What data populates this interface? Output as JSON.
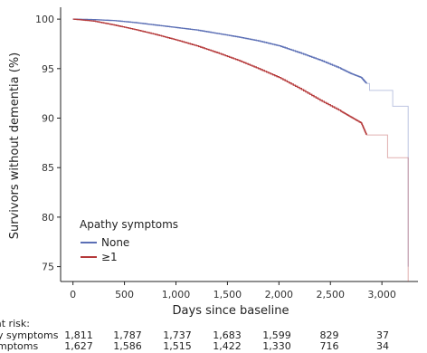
{
  "chart_data": {
    "type": "line",
    "title": "",
    "xlabel": "Days since baseline",
    "ylabel": "Survivors without dementia (%)",
    "xlim": [
      -120,
      3350
    ],
    "ylim": [
      73.5,
      101.2
    ],
    "xticks": [
      0,
      500,
      1000,
      1500,
      2000,
      2500,
      3000
    ],
    "xtick_labels": [
      "0",
      "500",
      "1,000",
      "1,500",
      "2,000",
      "2,500",
      "3,000"
    ],
    "yticks": [
      75,
      80,
      85,
      90,
      95,
      100
    ],
    "ytick_labels": [
      "75",
      "80",
      "85",
      "90",
      "95",
      "100"
    ],
    "grid": false,
    "step": true,
    "legend": {
      "title": "Apathy symptoms",
      "position": "bottom-left"
    },
    "series": [
      {
        "name": "None",
        "color": "#5b6fb5",
        "faded_after_x": 2850,
        "points": [
          [
            0,
            100
          ],
          [
            200,
            99.95
          ],
          [
            400,
            99.85
          ],
          [
            600,
            99.65
          ],
          [
            800,
            99.4
          ],
          [
            1000,
            99.15
          ],
          [
            1200,
            98.9
          ],
          [
            1400,
            98.55
          ],
          [
            1600,
            98.2
          ],
          [
            1800,
            97.8
          ],
          [
            2000,
            97.3
          ],
          [
            2200,
            96.6
          ],
          [
            2400,
            95.85
          ],
          [
            2600,
            95.0
          ],
          [
            2700,
            94.5
          ],
          [
            2800,
            94.1
          ],
          [
            2850,
            93.5
          ],
          [
            2880,
            92.8
          ],
          [
            3100,
            92.8
          ],
          [
            3105,
            91.2
          ],
          [
            3250,
            91.2
          ],
          [
            3255,
            75.0
          ]
        ]
      },
      {
        "name": "≥1",
        "color": "#b5393a",
        "faded_after_x": 2850,
        "points": [
          [
            0,
            100
          ],
          [
            200,
            99.8
          ],
          [
            400,
            99.4
          ],
          [
            600,
            98.95
          ],
          [
            800,
            98.45
          ],
          [
            1000,
            97.9
          ],
          [
            1200,
            97.3
          ],
          [
            1400,
            96.6
          ],
          [
            1600,
            95.85
          ],
          [
            1800,
            95.0
          ],
          [
            2000,
            94.1
          ],
          [
            2200,
            93.0
          ],
          [
            2400,
            91.8
          ],
          [
            2600,
            90.7
          ],
          [
            2700,
            90.1
          ],
          [
            2800,
            89.5
          ],
          [
            2850,
            88.3
          ],
          [
            3050,
            88.3
          ],
          [
            3055,
            86.0
          ],
          [
            3250,
            86.0
          ],
          [
            3255,
            73.5
          ]
        ]
      }
    ],
    "risk_table": {
      "title": "at risk:",
      "rows": [
        {
          "label": "y symptoms",
          "values": [
            "1,811",
            "1,787",
            "1,737",
            "1,683",
            "1,599",
            "829",
            "37"
          ]
        },
        {
          "label": "mptoms",
          "values": [
            "1,627",
            "1,586",
            "1,515",
            "1,422",
            "1,330",
            "716",
            "34"
          ]
        }
      ]
    }
  }
}
